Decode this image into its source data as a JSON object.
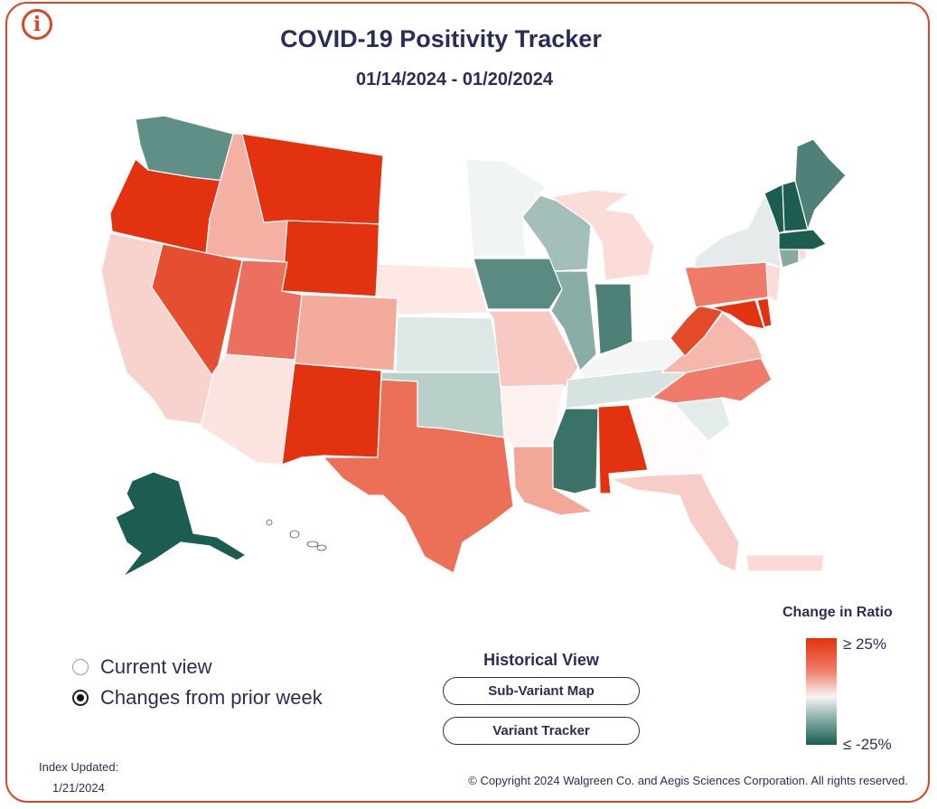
{
  "header": {
    "title": "COVID-19 Positivity Tracker",
    "date_range": "01/14/2024 - 01/20/2024",
    "info_icon_glyph": "i"
  },
  "map": {
    "metric": "Change in Ratio",
    "colors": {
      "high": "#e2320f",
      "mid_high": "#ef7c68",
      "neutral": "#f7f4f3",
      "mid_low": "#7aa69d",
      "low": "#1d5d51"
    }
  },
  "view_toggle": {
    "options": [
      {
        "label": "Current view",
        "selected": false
      },
      {
        "label": "Changes from prior week",
        "selected": true
      }
    ]
  },
  "historical": {
    "title": "Historical View",
    "buttons": [
      "Sub-Variant Map",
      "Variant Tracker"
    ]
  },
  "legend": {
    "title": "Change in Ratio",
    "high_label": "≥ 25%",
    "low_label": "≤ -25%"
  },
  "footer": {
    "updated_label": "Index Updated:",
    "updated_date": "1/21/2024",
    "copyright": "© Copyright 2024 Walgreen Co. and Aegis Sciences Corporation. All rights reserved."
  }
}
